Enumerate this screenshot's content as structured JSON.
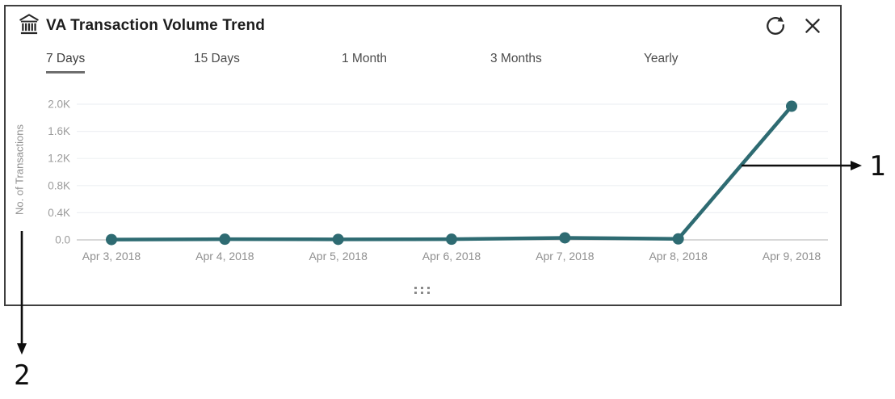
{
  "panel": {
    "title": "VA Transaction Volume Trend",
    "icons": {
      "title_icon": "bank-icon",
      "refresh": "refresh-icon",
      "close": "close-icon",
      "drag": "drag-handle-icon"
    }
  },
  "tabs": {
    "items": [
      {
        "label": "7 Days",
        "selected": true
      },
      {
        "label": "15 Days",
        "selected": false
      },
      {
        "label": "1 Month",
        "selected": false
      },
      {
        "label": "3 Months",
        "selected": false
      },
      {
        "label": "Yearly",
        "selected": false
      }
    ]
  },
  "chart_data": {
    "type": "line",
    "title": "VA Transaction Volume Trend",
    "x": [
      "Apr 3, 2018",
      "Apr 4, 2018",
      "Apr 5, 2018",
      "Apr 6, 2018",
      "Apr 7, 2018",
      "Apr 8, 2018",
      "Apr 9, 2018"
    ],
    "series": [
      {
        "name": "No. of Transactions",
        "values": [
          5,
          10,
          8,
          10,
          30,
          15,
          1970
        ]
      }
    ],
    "xlabel": "",
    "ylabel": "No. of Transactions",
    "ylim": [
      0,
      2000
    ],
    "y_ticks": [
      {
        "label": "0.0",
        "value": 0
      },
      {
        "label": "0.4K",
        "value": 400
      },
      {
        "label": "0.8K",
        "value": 800
      },
      {
        "label": "1.2K",
        "value": 1200
      },
      {
        "label": "1.6K",
        "value": 1600
      },
      {
        "label": "2.0K",
        "value": 2000
      }
    ],
    "grid": true,
    "legend_position": "none",
    "line_color": "#2e6b72",
    "marker": "circle"
  },
  "annotations": {
    "callout_1": {
      "label": "1"
    },
    "callout_2": {
      "label": "2"
    }
  },
  "colors": {
    "accent_teal": "#2e6b72",
    "panel_border": "#3f3f3f",
    "gridline": "#eef0f3",
    "axis_line": "#c0c0c0",
    "callout": "#0e0e0e"
  }
}
